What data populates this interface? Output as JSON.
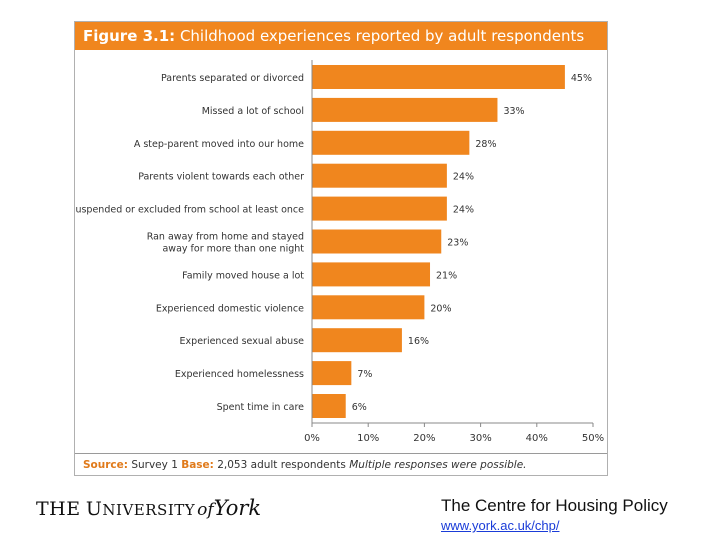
{
  "figure": {
    "label": "Figure 3.1:",
    "title": "Childhood experiences reported by adult respondents",
    "source_label": "Source:",
    "source_text": "Survey 1",
    "base_label": "Base:",
    "base_text": "2,053 adult respondents",
    "note": "Multiple responses were possible."
  },
  "chart_data": {
    "type": "bar",
    "orientation": "horizontal",
    "categories": [
      "Parents separated or divorced",
      "Missed a lot of school",
      "A step-parent moved into our home",
      "Parents violent towards each other",
      "Suspended or excluded from school at least once",
      "Ran away from home and stayed away for more than one night",
      "Family moved house a lot",
      "Experienced domestic violence",
      "Experienced sexual abuse",
      "Experienced homelessness",
      "Spent time in care"
    ],
    "category_lines": [
      [
        "Parents separated or divorced"
      ],
      [
        "Missed a lot of school"
      ],
      [
        "A step-parent moved into our home"
      ],
      [
        "Parents violent towards each other"
      ],
      [
        "Suspended or excluded from school at least once"
      ],
      [
        "Ran away from home and stayed",
        "away for more than one night"
      ],
      [
        "Family moved house a lot"
      ],
      [
        "Experienced domestic violence"
      ],
      [
        "Experienced sexual abuse"
      ],
      [
        "Experienced homelessness"
      ],
      [
        "Spent time in care"
      ]
    ],
    "values": [
      45,
      33,
      28,
      24,
      24,
      23,
      21,
      20,
      16,
      7,
      6
    ],
    "value_labels": [
      "45%",
      "33%",
      "28%",
      "24%",
      "24%",
      "23%",
      "21%",
      "20%",
      "16%",
      "7%",
      "6%"
    ],
    "xlim": [
      0,
      50
    ],
    "xticks": [
      0,
      10,
      20,
      30,
      40,
      50
    ],
    "xtick_labels": [
      "0%",
      "10%",
      "20%",
      "30%",
      "40%",
      "50%"
    ],
    "grid": false,
    "bar_color": "#f0861e"
  },
  "footer": {
    "university_the": "THE",
    "university_u": "U",
    "university_niversity": "NIVERSITY",
    "university_of": "of",
    "university_york": "York",
    "centre_name": "The Centre for Housing Policy",
    "url": "www.york.ac.uk/chp/"
  },
  "colors": {
    "accent": "#f0861e",
    "link": "#1a3cd8"
  }
}
